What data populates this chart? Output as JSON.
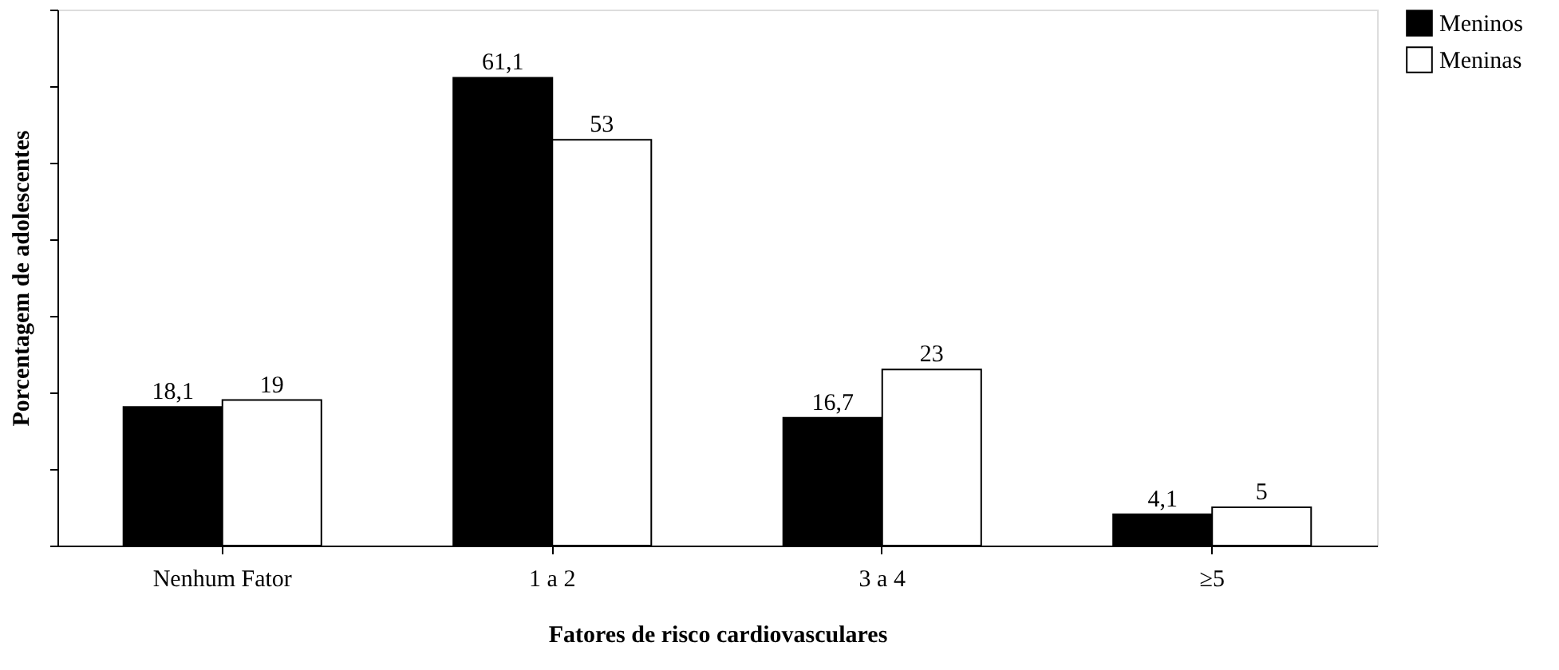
{
  "chart_data": {
    "type": "bar",
    "xlabel": "Fatores de risco cardiovasculares",
    "ylabel": "Porcentagem de adolescentes",
    "categories": [
      "Nenhum Fator",
      "1 a 2",
      "3 a 4",
      "≥5"
    ],
    "series": [
      {
        "name": "Meninos",
        "color": "#000000",
        "values": [
          18.1,
          61.1,
          16.7,
          4.1
        ],
        "value_labels": [
          "18,1",
          "61,1",
          "16,7",
          "4,1"
        ]
      },
      {
        "name": "Meninas",
        "color": "#ffffff",
        "values": [
          19,
          53,
          23,
          5
        ],
        "value_labels": [
          "19",
          "53",
          "23",
          "5"
        ]
      }
    ],
    "ylim": [
      0,
      70
    ],
    "yticks": [
      {
        "value": 0,
        "label": null
      },
      {
        "value": 10,
        "label": null
      },
      {
        "value": 20,
        "label": null
      },
      {
        "value": 30,
        "label": null
      },
      {
        "value": 40,
        "label": null
      },
      {
        "value": 50,
        "label": null
      },
      {
        "value": 60,
        "label": null
      },
      {
        "value": 70,
        "label": null
      }
    ],
    "tick_labels": "x",
    "grid": false,
    "legend": "right"
  }
}
